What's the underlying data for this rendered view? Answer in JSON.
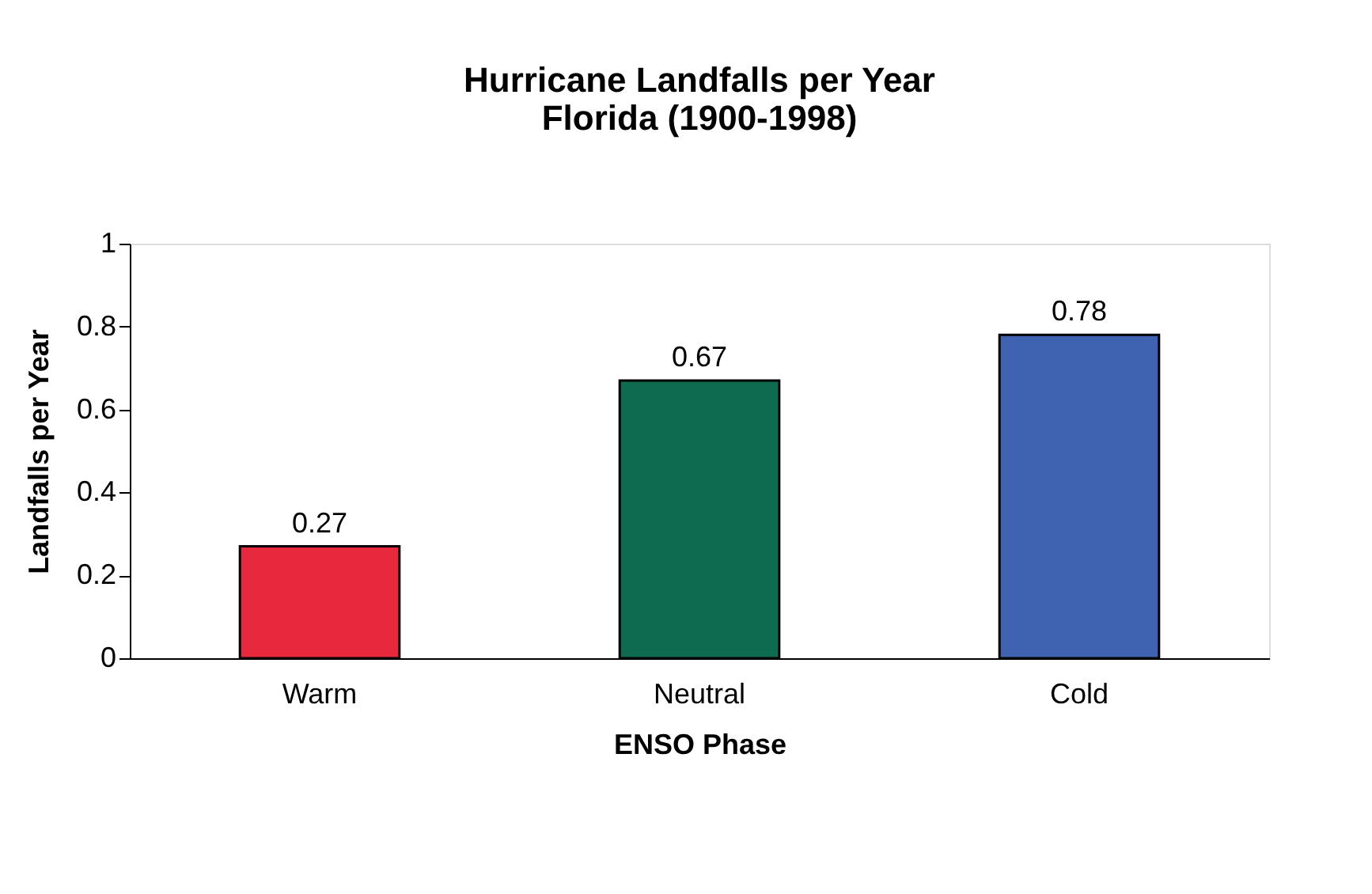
{
  "chart_data": {
    "type": "bar",
    "title": [
      "Hurricane Landfalls per Year",
      "Florida (1900-1998)"
    ],
    "xlabel": "ENSO Phase",
    "ylabel": "Landfalls per Year",
    "categories": [
      "Warm",
      "Neutral",
      "Cold"
    ],
    "values": [
      0.27,
      0.67,
      0.78
    ],
    "colors": [
      "#e8283c",
      "#0e6b4f",
      "#3f63b0"
    ],
    "ylim": [
      0,
      1
    ],
    "yticks": [
      0,
      0.2,
      0.4,
      0.6,
      0.8,
      {
        "value": 1,
        "label": "1"
      }
    ],
    "grid": false,
    "data_labels": true
  }
}
